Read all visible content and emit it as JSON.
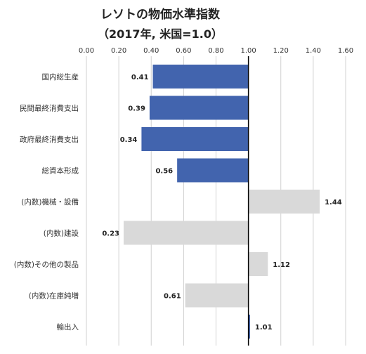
{
  "chart_data": {
    "type": "bar",
    "orientation": "horizontal",
    "title": "レソトの物価水準指数",
    "subtitle": "（2017年, 米国=1.0）",
    "xlabel": "",
    "ylabel": "",
    "xlim": [
      0,
      1.6
    ],
    "xticks": [
      "0.00",
      "0.20",
      "0.40",
      "0.60",
      "0.80",
      "1.00",
      "1.20",
      "1.40",
      "1.60"
    ],
    "tick_axis_position": "top",
    "grid": true,
    "baseline": 1.0,
    "categories": [
      "国内総生産",
      "民間最終消費支出",
      "政府最終消費支出",
      "総資本形成",
      "(内数)機械・設備",
      "(内数)建設",
      "(内数)その他の製品",
      "(内数)在庫純増",
      "輸出入"
    ],
    "values": [
      0.41,
      0.39,
      0.34,
      0.56,
      1.44,
      0.23,
      1.12,
      0.61,
      1.01
    ],
    "value_labels": [
      "0.41",
      "0.39",
      "0.34",
      "0.56",
      "1.44",
      "0.23",
      "1.12",
      "0.61",
      "1.01"
    ],
    "bar_colors": [
      "#4264AE",
      "#4264AE",
      "#4264AE",
      "#4264AE",
      "#D9D9D9",
      "#D9D9D9",
      "#D9D9D9",
      "#D9D9D9",
      "#4264AE"
    ],
    "colors": {
      "main": "#4264AE",
      "sub": "#D9D9D9",
      "grid": "#D0D0D0",
      "baseline": "#000000"
    }
  }
}
